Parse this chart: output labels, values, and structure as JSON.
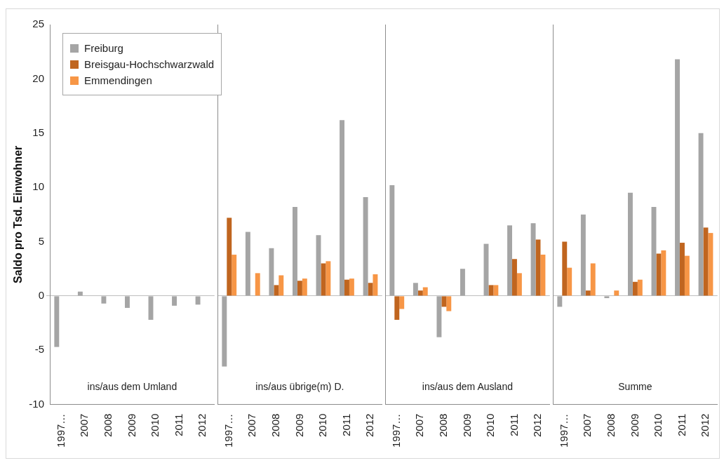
{
  "chart_data": [
    {
      "type": "bar",
      "ylabel": "Saldo pro Tsd. Einwohner",
      "categories": [
        "1997…",
        "2007",
        "2008",
        "2009",
        "2010",
        "2011",
        "2012"
      ],
      "ylim": [
        -10,
        25
      ],
      "yticks": [
        -10,
        -5,
        0,
        5,
        10,
        15,
        20,
        25
      ],
      "legend": "top left",
      "annotations": [
        "ins/aus dem Umland"
      ],
      "series": [
        {
          "name": "Freiburg",
          "color": "#a5a5a5",
          "values": [
            -4.7,
            0.4,
            -0.7,
            -1.1,
            -2.2,
            -0.9,
            -0.8
          ]
        },
        {
          "name": "Breisgau-Hochschwarzwald",
          "color": "#c0651f",
          "values": [
            null,
            null,
            null,
            null,
            null,
            null,
            null
          ]
        },
        {
          "name": "Emmendingen",
          "color": "#f79646",
          "values": [
            null,
            null,
            null,
            null,
            null,
            null,
            null
          ]
        }
      ]
    },
    {
      "type": "bar",
      "categories": [
        "1997…",
        "2007",
        "2008",
        "2009",
        "2010",
        "2011",
        "2012"
      ],
      "ylim": [
        -10,
        25
      ],
      "yticks": [
        -10,
        -5,
        0,
        5,
        10,
        15,
        20,
        25
      ],
      "tick_labels": "x",
      "annotations": [
        "ins/aus übrige(m) D."
      ],
      "series": [
        {
          "color": "#a5a5a5",
          "values": [
            -6.5,
            5.9,
            4.4,
            8.2,
            5.6,
            16.2,
            9.1
          ]
        },
        {
          "color": "#c0651f",
          "values": [
            7.2,
            null,
            1.0,
            1.4,
            3.0,
            1.5,
            1.2
          ]
        },
        {
          "color": "#f79646",
          "values": [
            3.8,
            2.1,
            1.9,
            1.6,
            3.2,
            1.6,
            2.0
          ]
        }
      ]
    },
    {
      "type": "bar",
      "categories": [
        "1997…",
        "2007",
        "2008",
        "2009",
        "2010",
        "2011",
        "2012"
      ],
      "ylim": [
        -10,
        25
      ],
      "yticks": [
        -10,
        -5,
        0,
        5,
        10,
        15,
        20,
        25
      ],
      "tick_labels": "x",
      "annotations": [
        "ins/aus dem Ausland"
      ],
      "series": [
        {
          "color": "#a5a5a5",
          "values": [
            10.2,
            1.2,
            -3.8,
            2.5,
            4.8,
            6.5,
            6.7
          ]
        },
        {
          "color": "#c0651f",
          "values": [
            -2.2,
            0.5,
            -1.0,
            null,
            1.0,
            3.4,
            5.2
          ]
        },
        {
          "color": "#f79646",
          "values": [
            -1.2,
            0.8,
            -1.4,
            null,
            1.0,
            2.1,
            3.8
          ]
        }
      ]
    },
    {
      "type": "bar",
      "categories": [
        "1997…",
        "2007",
        "2008",
        "2009",
        "2010",
        "2011",
        "2012"
      ],
      "ylim": [
        -10,
        25
      ],
      "yticks": [
        -10,
        -5,
        0,
        5,
        10,
        15,
        20,
        25
      ],
      "tick_labels": "x",
      "annotations": [
        "Summe"
      ],
      "series": [
        {
          "color": "#a5a5a5",
          "values": [
            -1.0,
            7.5,
            -0.2,
            9.5,
            8.2,
            21.8,
            15.0
          ]
        },
        {
          "color": "#c0651f",
          "values": [
            5.0,
            0.5,
            null,
            1.3,
            3.9,
            4.9,
            6.3
          ]
        },
        {
          "color": "#f79646",
          "values": [
            2.6,
            3.0,
            0.5,
            1.5,
            4.2,
            3.7,
            5.8
          ]
        }
      ]
    }
  ]
}
